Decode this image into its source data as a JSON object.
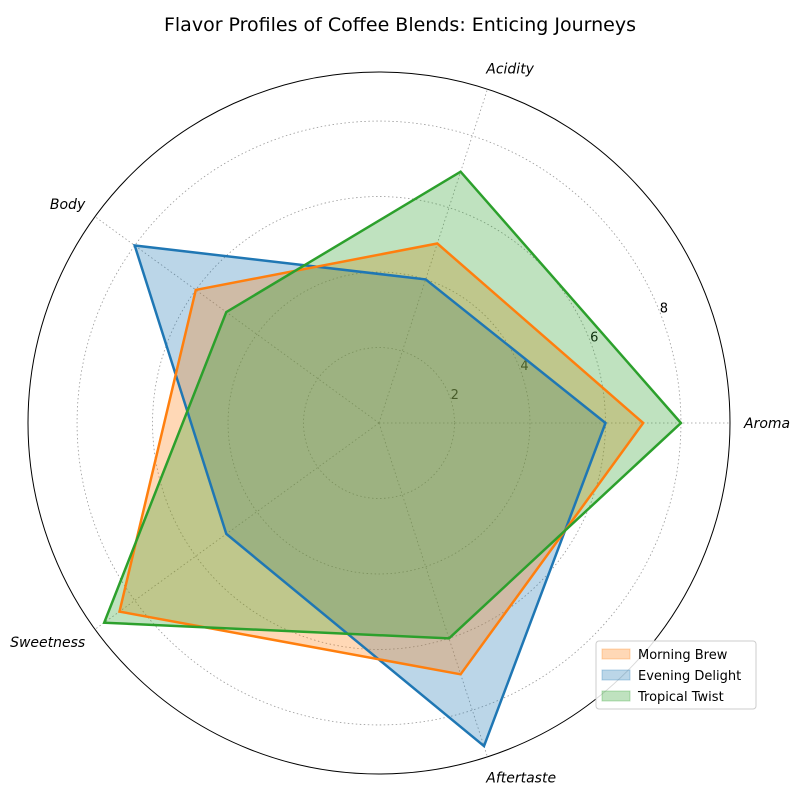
{
  "chart_data": {
    "type": "radar",
    "title": "Flavor Profiles of Coffee Blends: Enticing Journeys",
    "axes": [
      "Aroma",
      "Acidity",
      "Body",
      "Sweetness",
      "Aftertaste"
    ],
    "rmax": 9.3,
    "ticks": [
      2,
      4,
      6,
      8
    ],
    "grid": true,
    "legend_position": "lower-right",
    "series": [
      {
        "name": "Morning Brew",
        "values": [
          7,
          5,
          6,
          8.5,
          7
        ],
        "color": "#ff7f0e"
      },
      {
        "name": "Evening Delight",
        "values": [
          6,
          4,
          8,
          5,
          9
        ],
        "color": "#1f77b4"
      },
      {
        "name": "Tropical Twist",
        "values": [
          8,
          7,
          5,
          9,
          6
        ],
        "color": "#2ca02c"
      }
    ],
    "draw_order": [
      1,
      0,
      2
    ]
  }
}
